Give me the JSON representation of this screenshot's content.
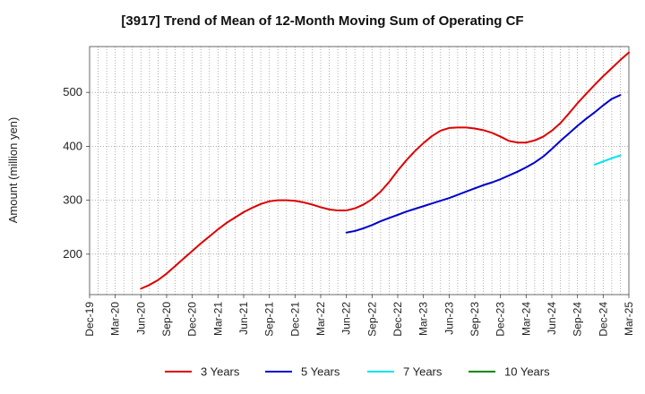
{
  "chart_data": {
    "type": "line",
    "title": "[3917]  Trend of Mean of 12-Month Moving Sum of Operating CF",
    "xlabel": "",
    "ylabel": "Amount (million yen)",
    "ylim": [
      125,
      585
    ],
    "yticks": [
      200,
      300,
      400,
      500
    ],
    "grid": true,
    "legend_position": "bottom",
    "categories": [
      "Dec-19",
      "Mar-20",
      "Jun-20",
      "Sep-20",
      "Dec-20",
      "Mar-21",
      "Jun-21",
      "Sep-21",
      "Dec-21",
      "Mar-22",
      "Jun-22",
      "Sep-22",
      "Dec-22",
      "Mar-23",
      "Jun-23",
      "Sep-23",
      "Dec-23",
      "Mar-24",
      "Jun-24",
      "Sep-24",
      "Dec-24",
      "Mar-25"
    ],
    "series": [
      {
        "name": "3 Years",
        "color": "#dd0000",
        "points": [
          [
            6,
            136
          ],
          [
            7,
            143
          ],
          [
            8,
            152
          ],
          [
            9,
            164
          ],
          [
            10,
            178
          ],
          [
            11,
            192
          ],
          [
            12,
            206
          ],
          [
            13,
            220
          ],
          [
            14,
            233
          ],
          [
            15,
            246
          ],
          [
            16,
            258
          ],
          [
            17,
            268
          ],
          [
            18,
            278
          ],
          [
            19,
            286
          ],
          [
            20,
            293
          ],
          [
            21,
            298
          ],
          [
            22,
            300
          ],
          [
            23,
            300
          ],
          [
            24,
            299
          ],
          [
            25,
            296
          ],
          [
            26,
            292
          ],
          [
            27,
            287
          ],
          [
            28,
            283
          ],
          [
            29,
            281
          ],
          [
            30,
            281
          ],
          [
            31,
            285
          ],
          [
            32,
            292
          ],
          [
            33,
            302
          ],
          [
            34,
            316
          ],
          [
            35,
            334
          ],
          [
            36,
            355
          ],
          [
            37,
            374
          ],
          [
            38,
            391
          ],
          [
            39,
            406
          ],
          [
            40,
            419
          ],
          [
            41,
            429
          ],
          [
            42,
            434
          ],
          [
            43,
            435
          ],
          [
            44,
            435
          ],
          [
            45,
            433
          ],
          [
            46,
            430
          ],
          [
            47,
            425
          ],
          [
            48,
            418
          ],
          [
            49,
            410
          ],
          [
            50,
            407
          ],
          [
            51,
            407
          ],
          [
            52,
            411
          ],
          [
            53,
            418
          ],
          [
            54,
            429
          ],
          [
            55,
            443
          ],
          [
            56,
            461
          ],
          [
            57,
            480
          ],
          [
            58,
            497
          ],
          [
            59,
            514
          ],
          [
            60,
            530
          ],
          [
            61,
            545
          ],
          [
            62,
            560
          ],
          [
            63,
            574
          ]
        ]
      },
      {
        "name": "5 Years",
        "color": "#0000cc",
        "points": [
          [
            30,
            240
          ],
          [
            31,
            243
          ],
          [
            32,
            248
          ],
          [
            33,
            254
          ],
          [
            34,
            261
          ],
          [
            35,
            267
          ],
          [
            36,
            273
          ],
          [
            37,
            279
          ],
          [
            38,
            284
          ],
          [
            39,
            289
          ],
          [
            40,
            294
          ],
          [
            41,
            299
          ],
          [
            42,
            304
          ],
          [
            43,
            310
          ],
          [
            44,
            316
          ],
          [
            45,
            322
          ],
          [
            46,
            328
          ],
          [
            47,
            333
          ],
          [
            48,
            339
          ],
          [
            49,
            346
          ],
          [
            50,
            353
          ],
          [
            51,
            361
          ],
          [
            52,
            370
          ],
          [
            53,
            381
          ],
          [
            54,
            395
          ],
          [
            55,
            410
          ],
          [
            56,
            424
          ],
          [
            57,
            438
          ],
          [
            58,
            451
          ],
          [
            59,
            463
          ],
          [
            60,
            476
          ],
          [
            61,
            488
          ],
          [
            62,
            495
          ]
        ]
      },
      {
        "name": "7 Years",
        "color": "#00e5ee",
        "points": [
          [
            59,
            366
          ],
          [
            60,
            372
          ],
          [
            61,
            378
          ],
          [
            62,
            383
          ]
        ]
      },
      {
        "name": "10 Years",
        "color": "#008800",
        "points": []
      }
    ]
  }
}
